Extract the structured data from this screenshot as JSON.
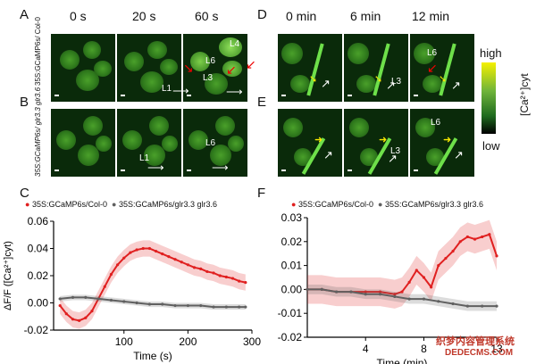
{
  "panels": {
    "A": "A",
    "B": "B",
    "C": "C",
    "D": "D",
    "E": "E",
    "F": "F"
  },
  "time_headers_left": [
    "0 s",
    "20 s",
    "60 s"
  ],
  "time_headers_right": [
    "0 min",
    "6 min",
    "12 min"
  ],
  "row_labels": {
    "A": "35S:GCaMP6s/ Col-0",
    "B": "35S:GCaMP6s/ glr3.3 glr3.6"
  },
  "leaf_labels": {
    "A_L1": "L1",
    "A_L3": "L3",
    "A_L4": "L4",
    "A_L6": "L6",
    "B_L1": "L1",
    "B_L6": "L6",
    "D_L3": "L3",
    "D_L6": "L6",
    "E_L3": "L3",
    "E_L6": "L6"
  },
  "colorbar": {
    "high": "high",
    "low": "low",
    "label": "[Ca²⁺]cyt"
  },
  "watermark": {
    "line1": "织梦内容管理系统",
    "line2": "DEDECMS.COM"
  },
  "chart_data": [
    {
      "type": "line",
      "panel": "C",
      "xlabel": "Time (s)",
      "ylabel": "ΔF/F ([Ca²⁺]cyt)",
      "xlim": [
        -10,
        300
      ],
      "ylim": [
        -0.02,
        0.06
      ],
      "xticks": [
        100,
        200,
        300
      ],
      "yticks": [
        -0.02,
        0.0,
        0.02,
        0.04,
        0.06
      ],
      "ytick_labels": [
        "-0.02",
        "0.00",
        "0.02",
        "0.04",
        "0.06"
      ],
      "series": [
        {
          "name": "35S:GCaMP6s/Col-0",
          "color": "#e02020",
          "x": [
            0,
            10,
            20,
            30,
            40,
            50,
            60,
            70,
            80,
            90,
            100,
            110,
            120,
            130,
            140,
            150,
            160,
            170,
            180,
            190,
            200,
            210,
            220,
            230,
            240,
            250,
            260,
            270,
            280,
            290
          ],
          "y": [
            -0.002,
            -0.008,
            -0.012,
            -0.013,
            -0.011,
            -0.006,
            0.003,
            0.012,
            0.021,
            0.028,
            0.033,
            0.037,
            0.039,
            0.04,
            0.04,
            0.038,
            0.036,
            0.034,
            0.032,
            0.03,
            0.028,
            0.026,
            0.025,
            0.023,
            0.022,
            0.02,
            0.019,
            0.018,
            0.016,
            0.015
          ]
        },
        {
          "name": "35S:GCaMP6s/glr3.3 glr3.6",
          "color": "#606060",
          "x": [
            0,
            20,
            40,
            60,
            80,
            100,
            120,
            140,
            160,
            180,
            200,
            220,
            240,
            260,
            280,
            290
          ],
          "y": [
            0.003,
            0.004,
            0.004,
            0.003,
            0.002,
            0.001,
            0.0,
            -0.001,
            -0.001,
            -0.002,
            -0.002,
            -0.002,
            -0.003,
            -0.003,
            -0.003,
            -0.003
          ]
        }
      ]
    },
    {
      "type": "line",
      "panel": "F",
      "xlabel": "Time (min)",
      "ylabel": "",
      "xlim": [
        0,
        13
      ],
      "ylim": [
        -0.02,
        0.03
      ],
      "xticks": [
        4,
        8,
        13
      ],
      "yticks": [
        -0.02,
        -0.01,
        0.0,
        0.01,
        0.02,
        0.03
      ],
      "ytick_labels": [
        "-0.02",
        "-0.01",
        "0.00",
        "0.01",
        "0.02",
        "0.03"
      ],
      "series": [
        {
          "name": "35S:GCaMP6s/Col-0",
          "color": "#e02020",
          "x": [
            0,
            1,
            2,
            3,
            4,
            5,
            6,
            6.5,
            7,
            7.5,
            8,
            8.5,
            9,
            9.5,
            10,
            10.5,
            11,
            11.5,
            12,
            12.5,
            13
          ],
          "y": [
            0.0,
            0.0,
            -0.001,
            -0.001,
            -0.001,
            -0.001,
            -0.002,
            -0.001,
            0.003,
            0.008,
            0.005,
            0.001,
            0.01,
            0.013,
            0.016,
            0.02,
            0.022,
            0.021,
            0.022,
            0.023,
            0.014
          ]
        },
        {
          "name": "35S:GCaMP6s/glr3.3 glr3.6",
          "color": "#606060",
          "x": [
            0,
            1,
            2,
            3,
            4,
            5,
            6,
            7,
            8,
            9,
            10,
            11,
            12,
            13
          ],
          "y": [
            0.0,
            0.0,
            -0.001,
            -0.001,
            -0.002,
            -0.002,
            -0.003,
            -0.004,
            -0.004,
            -0.005,
            -0.006,
            -0.007,
            -0.007,
            -0.007
          ]
        }
      ]
    }
  ]
}
